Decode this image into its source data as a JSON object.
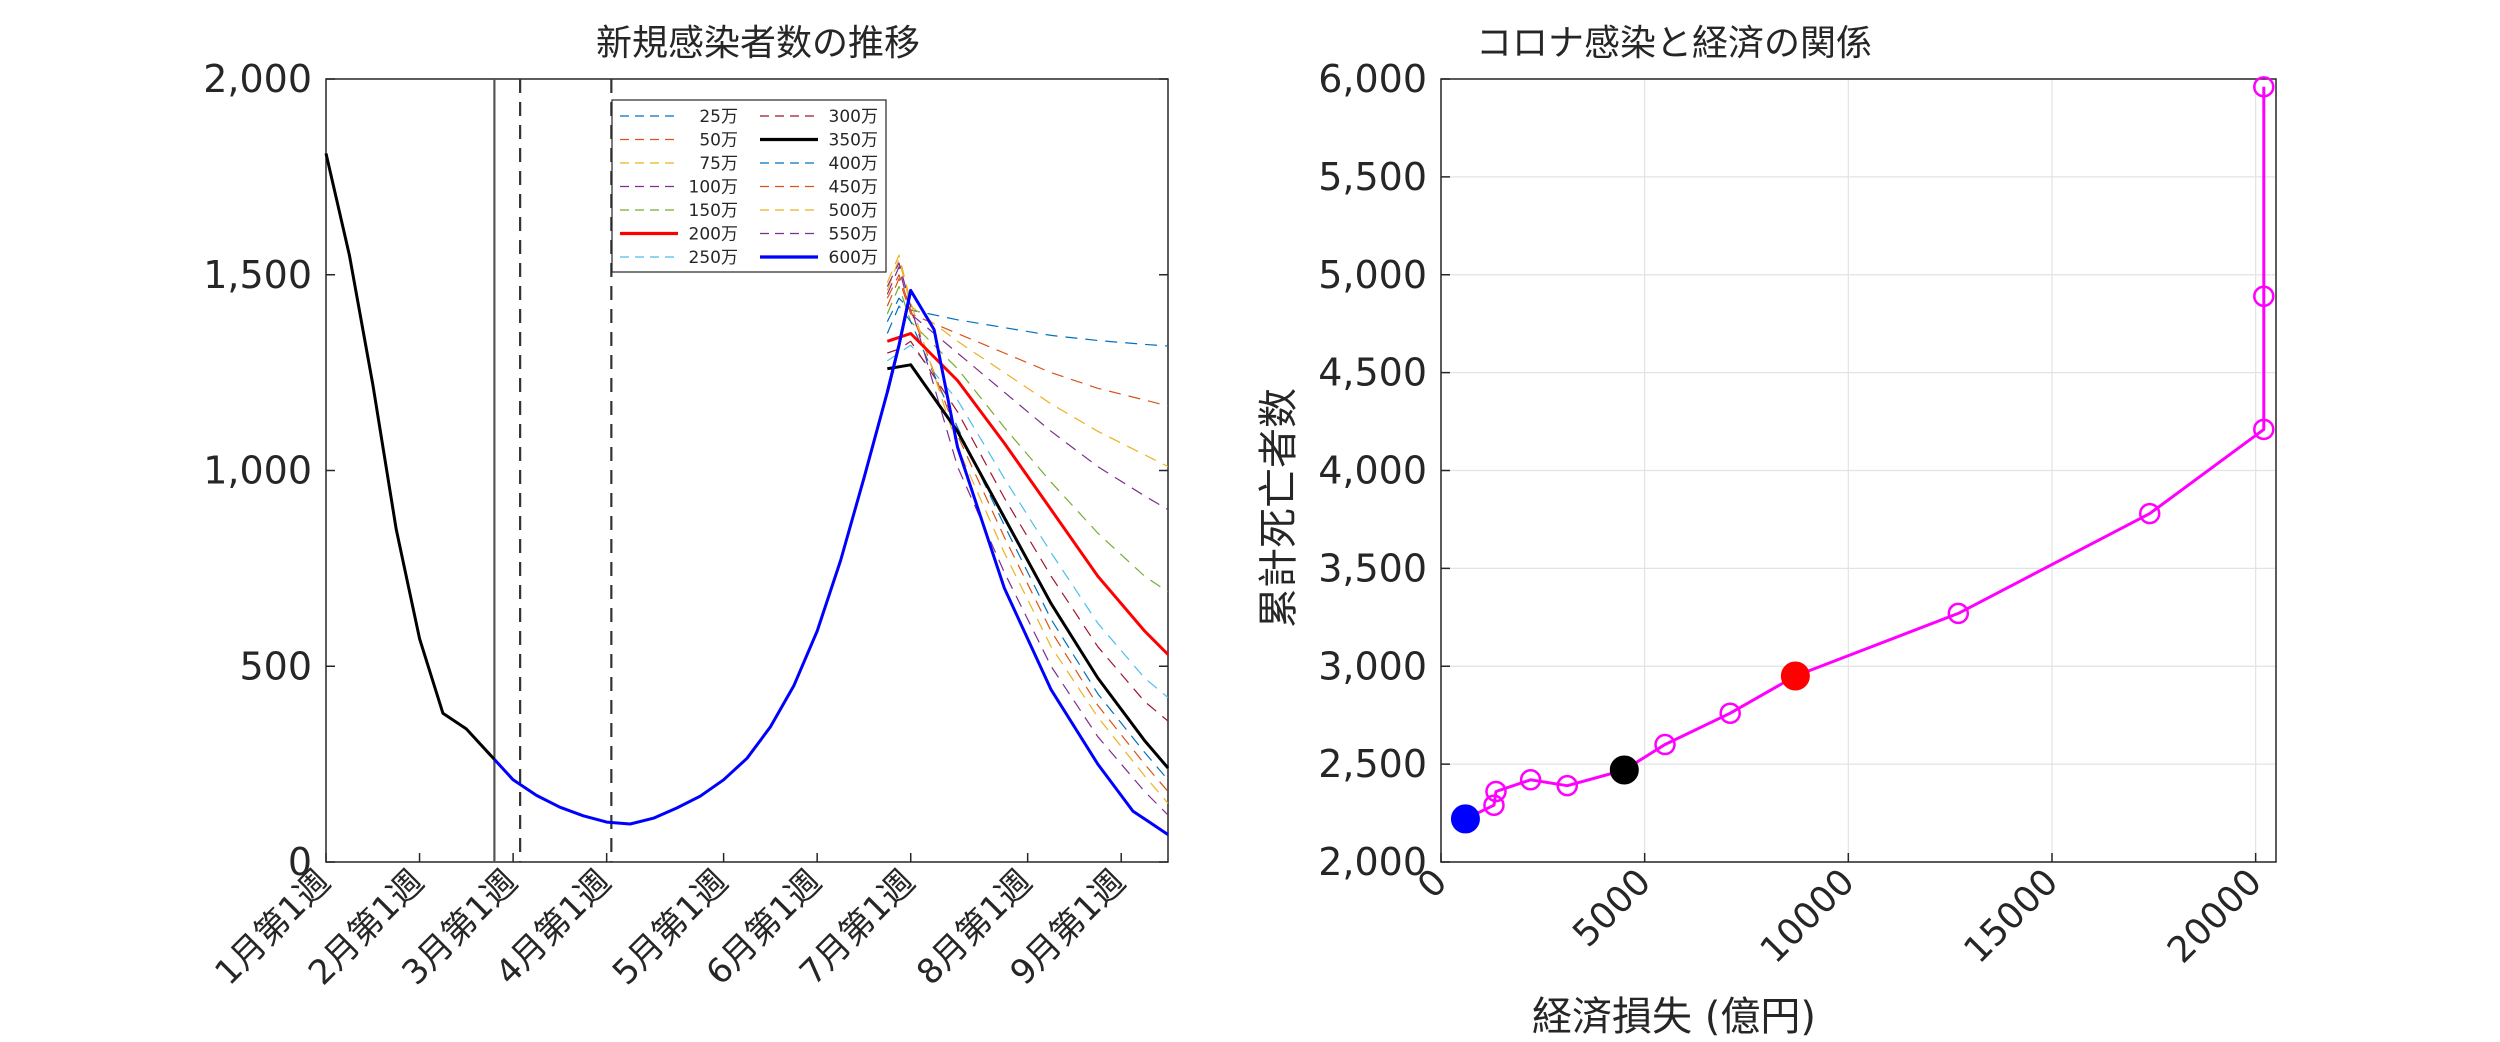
{
  "chart_data": [
    {
      "type": "line",
      "title": "新規感染者数の推移",
      "xlabel": "",
      "ylabel": "",
      "ylim": [
        0,
        2000
      ],
      "grid": false,
      "legend_position": "top-center",
      "y_ticks": [
        0,
        500,
        1000,
        1500,
        2000
      ],
      "y_tick_labels": [
        "0",
        "500",
        "1,000",
        "1,500",
        "2,000"
      ],
      "x_range": [
        1,
        37
      ],
      "x_ticks": [
        1,
        5,
        9,
        13,
        18,
        22,
        26,
        31,
        35
      ],
      "x_tick_labels": [
        "1月第1週",
        "2月第1週",
        "3月第1週",
        "4月第1週",
        "5月第1週",
        "6月第1週",
        "7月第1週",
        "8月第1週",
        "9月第1週"
      ],
      "vertical_lines": [
        {
          "x": 8.2,
          "style": "solid"
        },
        {
          "x": 9.3,
          "style": "dashed"
        },
        {
          "x": 13.2,
          "style": "dashed"
        }
      ],
      "base_series": {
        "x": [
          1,
          2,
          3,
          4,
          5,
          6,
          7,
          8,
          9,
          10,
          11,
          12,
          13,
          14,
          15,
          16,
          17,
          18,
          19,
          20,
          21,
          22,
          23,
          24,
          25,
          25.5,
          26
        ],
        "values": [
          1810,
          1550,
          1220,
          850,
          570,
          380,
          340,
          275,
          210,
          170,
          140,
          118,
          102,
          97,
          112,
          138,
          168,
          210,
          265,
          345,
          450,
          590,
          770,
          980,
          1200,
          1320,
          1460
        ]
      },
      "series": [
        {
          "name": "25万",
          "color": "#0072bd",
          "style": "dashed",
          "width": 1.2,
          "tail": [
            [
              25,
              1380
            ],
            [
              25.5,
              1440
            ],
            [
              26,
              1410
            ],
            [
              28,
              1385
            ],
            [
              30,
              1365
            ],
            [
              32,
              1345
            ],
            [
              34,
              1332
            ],
            [
              36,
              1322
            ],
            [
              37,
              1318
            ]
          ]
        },
        {
          "name": "50万",
          "color": "#d95319",
          "style": "dashed",
          "width": 1.2,
          "tail": [
            [
              25,
              1420
            ],
            [
              25.5,
              1490
            ],
            [
              26,
              1400
            ],
            [
              28,
              1350
            ],
            [
              30,
              1300
            ],
            [
              32,
              1250
            ],
            [
              34,
              1210
            ],
            [
              36,
              1180
            ],
            [
              37,
              1165
            ]
          ]
        },
        {
          "name": "75万",
          "color": "#edb120",
          "style": "dashed",
          "width": 1.2,
          "tail": [
            [
              25,
              1460
            ],
            [
              25.5,
              1540
            ],
            [
              26,
              1420
            ],
            [
              28,
              1330
            ],
            [
              30,
              1250
            ],
            [
              32,
              1170
            ],
            [
              34,
              1100
            ],
            [
              36,
              1040
            ],
            [
              37,
              1010
            ]
          ]
        },
        {
          "name": "100万",
          "color": "#7e2f8e",
          "style": "dashed",
          "width": 1.2,
          "tail": [
            [
              25,
              1450
            ],
            [
              25.5,
              1520
            ],
            [
              26,
              1400
            ],
            [
              28,
              1300
            ],
            [
              30,
              1200
            ],
            [
              32,
              1100
            ],
            [
              34,
              1010
            ],
            [
              36,
              935
            ],
            [
              37,
              900
            ]
          ]
        },
        {
          "name": "150万",
          "color": "#77ac30",
          "style": "dashed",
          "width": 1.2,
          "tail": [
            [
              25,
              1400
            ],
            [
              25.5,
              1470
            ],
            [
              26,
              1380
            ],
            [
              28,
              1260
            ],
            [
              30,
              1110
            ],
            [
              32,
              970
            ],
            [
              34,
              840
            ],
            [
              36,
              730
            ],
            [
              37,
              690
            ]
          ]
        },
        {
          "name": "200万",
          "color": "#ff0000",
          "style": "solid",
          "width": 3,
          "tail": [
            [
              25,
              1330
            ],
            [
              25.5,
              1340
            ],
            [
              26,
              1350
            ],
            [
              28,
              1230
            ],
            [
              30,
              1070
            ],
            [
              32,
              900
            ],
            [
              34,
              730
            ],
            [
              36,
              590
            ],
            [
              37,
              530
            ]
          ]
        },
        {
          "name": "250万",
          "color": "#4dbeee",
          "style": "dashed",
          "width": 1.2,
          "tail": [
            [
              25,
              1280
            ],
            [
              25.5,
              1300
            ],
            [
              26,
              1320
            ],
            [
              28,
              1180
            ],
            [
              30,
              980
            ],
            [
              32,
              790
            ],
            [
              34,
              610
            ],
            [
              36,
              470
            ],
            [
              37,
              420
            ]
          ]
        },
        {
          "name": "300万",
          "color": "#a2142f",
          "style": "dashed",
          "width": 1.2,
          "tail": [
            [
              25,
              1300
            ],
            [
              25.5,
              1310
            ],
            [
              26,
              1330
            ],
            [
              28,
              1150
            ],
            [
              30,
              930
            ],
            [
              32,
              730
            ],
            [
              34,
              550
            ],
            [
              36,
              410
            ],
            [
              37,
              360
            ]
          ]
        },
        {
          "name": "350万",
          "color": "#000000",
          "style": "solid",
          "width": 3,
          "tail": [
            [
              25,
              1260
            ],
            [
              25.5,
              1265
            ],
            [
              26,
              1270
            ],
            [
              28,
              1100
            ],
            [
              30,
              880
            ],
            [
              32,
              660
            ],
            [
              34,
              470
            ],
            [
              36,
              310
            ],
            [
              37,
              240
            ]
          ]
        },
        {
          "name": "400万",
          "color": "#0072bd",
          "style": "dashed",
          "width": 1.2,
          "tail": [
            [
              25,
              1350
            ],
            [
              25.5,
              1420
            ],
            [
              26,
              1380
            ],
            [
              28,
              1110
            ],
            [
              30,
              860
            ],
            [
              32,
              620
            ],
            [
              34,
              430
            ],
            [
              36,
              280
            ],
            [
              37,
              210
            ]
          ]
        },
        {
          "name": "450万",
          "color": "#d95319",
          "style": "dashed",
          "width": 1.2,
          "tail": [
            [
              25,
              1440
            ],
            [
              25.5,
              1500
            ],
            [
              26,
              1410
            ],
            [
              28,
              1090
            ],
            [
              30,
              830
            ],
            [
              32,
              590
            ],
            [
              34,
              400
            ],
            [
              36,
              250
            ],
            [
              37,
              180
            ]
          ]
        },
        {
          "name": "500万",
          "color": "#edb120",
          "style": "dashed",
          "width": 1.2,
          "tail": [
            [
              25,
              1480
            ],
            [
              25.5,
              1550
            ],
            [
              26,
              1430
            ],
            [
              28,
              1060
            ],
            [
              30,
              790
            ],
            [
              32,
              550
            ],
            [
              34,
              370
            ],
            [
              36,
              220
            ],
            [
              37,
              150
            ]
          ]
        },
        {
          "name": "550万",
          "color": "#7e2f8e",
          "style": "dashed",
          "width": 1.2,
          "tail": [
            [
              25,
              1470
            ],
            [
              25.5,
              1530
            ],
            [
              26,
              1420
            ],
            [
              28,
              1010
            ],
            [
              30,
              740
            ],
            [
              32,
              500
            ],
            [
              34,
              320
            ],
            [
              36,
              180
            ],
            [
              37,
              120
            ]
          ]
        },
        {
          "name": "600万",
          "color": "#0000ff",
          "style": "solid",
          "width": 3,
          "tail": [
            [
              25,
              1200
            ],
            [
              25.5,
              1320
            ],
            [
              26,
              1460
            ],
            [
              27,
              1360
            ],
            [
              28,
              1060
            ],
            [
              30,
              700
            ],
            [
              32,
              440
            ],
            [
              34,
              250
            ],
            [
              35.5,
              130
            ],
            [
              37,
              70
            ]
          ]
        }
      ]
    },
    {
      "type": "scatter",
      "title": "コロナ感染と経済の関係",
      "xlabel": "経済損失 (億円)",
      "ylabel": "累計死亡者数",
      "xlim": [
        0,
        20500
      ],
      "ylim": [
        2000,
        6000
      ],
      "grid": true,
      "x_ticks": [
        0,
        5000,
        10000,
        15000,
        20000
      ],
      "x_tick_labels": [
        "0",
        "5000",
        "10000",
        "15000",
        "20000"
      ],
      "y_ticks": [
        2000,
        2500,
        3000,
        3500,
        4000,
        4500,
        5000,
        5500,
        6000
      ],
      "y_tick_labels": [
        "2,000",
        "2,500",
        "3,000",
        "3,500",
        "4,000",
        "4,500",
        "5,000",
        "5,500",
        "6,000"
      ],
      "line_color": "#ff00ff",
      "points": [
        {
          "x": 600,
          "y": 2220
        },
        {
          "x": 1300,
          "y": 2290
        },
        {
          "x": 1350,
          "y": 2360
        },
        {
          "x": 2200,
          "y": 2420
        },
        {
          "x": 3100,
          "y": 2390
        },
        {
          "x": 4500,
          "y": 2470
        },
        {
          "x": 5500,
          "y": 2600
        },
        {
          "x": 7100,
          "y": 2760
        },
        {
          "x": 8700,
          "y": 2950
        },
        {
          "x": 12700,
          "y": 3270
        },
        {
          "x": 17400,
          "y": 3780
        },
        {
          "x": 20200,
          "y": 4210
        },
        {
          "x": 20200,
          "y": 4890
        },
        {
          "x": 20200,
          "y": 5960
        }
      ],
      "highlights": [
        {
          "x": 600,
          "y": 2220,
          "color": "#0000ff"
        },
        {
          "x": 4500,
          "y": 2470,
          "color": "#000000"
        },
        {
          "x": 8700,
          "y": 2950,
          "color": "#ff0000"
        }
      ]
    }
  ]
}
